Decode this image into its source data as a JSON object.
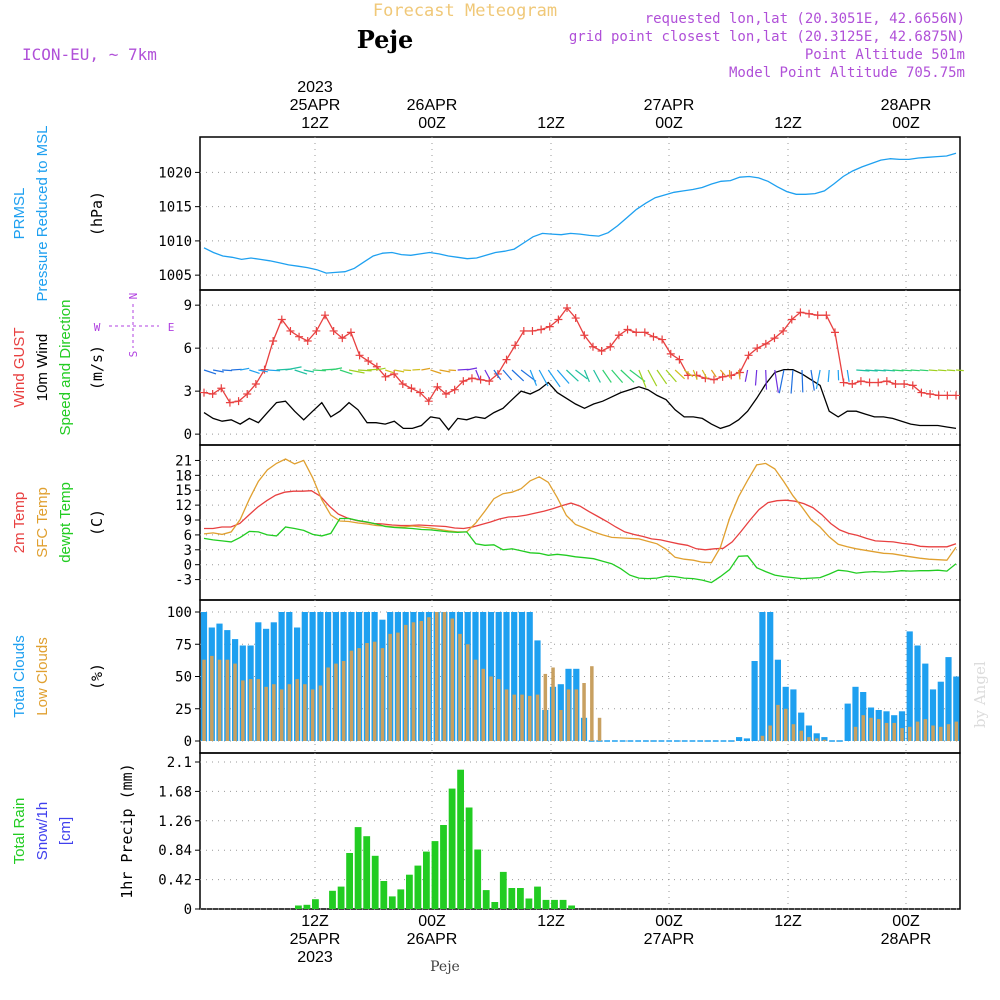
{
  "header": {
    "title": "Forecast Meteogram",
    "location": "Peje",
    "model": "ICON-EU, ~ 7km",
    "requested": "requested lon,lat (20.3051E, 42.6656N)",
    "grid_point": "grid point closest lon,lat (20.3125E, 42.6875N)",
    "point_altitude": "Point Altitude 501m",
    "model_altitude": "Model Point Altitude 705.75m",
    "footer_location": "Peje",
    "watermark": "by Angel"
  },
  "time_axis": {
    "top_labels": [
      {
        "lines": [
          "2023",
          "25APR",
          "12Z"
        ]
      },
      {
        "lines": [
          "26APR",
          "00Z"
        ]
      },
      {
        "lines": [
          "12Z"
        ]
      },
      {
        "lines": [
          "27APR",
          "00Z"
        ]
      },
      {
        "lines": [
          "12Z"
        ]
      },
      {
        "lines": [
          "28APR",
          "00Z"
        ]
      }
    ],
    "bottom_labels": [
      {
        "lines": [
          "12Z",
          "25APR",
          "2023"
        ]
      },
      {
        "lines": [
          "00Z",
          "26APR"
        ]
      },
      {
        "lines": [
          "12Z"
        ]
      },
      {
        "lines": [
          "00Z",
          "27APR"
        ]
      },
      {
        "lines": [
          "12Z"
        ]
      },
      {
        "lines": [
          "00Z",
          "28APR"
        ]
      }
    ]
  },
  "chart_data": [
    {
      "type": "line",
      "panel": "pressure",
      "labels": {
        "left": [
          {
            "text": "PRMSL",
            "color": "#1ea0f0"
          },
          {
            "text": "Pressure Reduced to MSL",
            "color": "#1ea0f0"
          }
        ],
        "unit": "(hPa)"
      },
      "ylim": [
        1004,
        1024
      ],
      "yticks": [
        1005,
        1010,
        1015,
        1020
      ],
      "series": [
        {
          "color": "#1ea0f0",
          "values": [
            1009,
            1008.3,
            1007.8,
            1007.6,
            1007.3,
            1007.5,
            1007.3,
            1007.1,
            1006.8,
            1006.5,
            1006.3,
            1006.1,
            1005.8,
            1005.3,
            1005.4,
            1005.5,
            1006,
            1006.9,
            1007.8,
            1008.2,
            1008.3,
            1008,
            1007.9,
            1008.1,
            1008.3,
            1008.1,
            1007.8,
            1007.6,
            1007.4,
            1007.5,
            1007.9,
            1008.3,
            1008.5,
            1008.8,
            1009.7,
            1010.6,
            1011.1,
            1011,
            1010.9,
            1011.1,
            1011,
            1010.8,
            1010.7,
            1011.2,
            1012.2,
            1013.4,
            1014.6,
            1015.5,
            1016.3,
            1016.7,
            1017.1,
            1017.3,
            1017.5,
            1017.8,
            1018.3,
            1018.7,
            1018.8,
            1019.3,
            1019.4,
            1019.2,
            1018.7,
            1017.9,
            1017.2,
            1016.8,
            1016.8,
            1016.9,
            1017.3,
            1018.3,
            1019.4,
            1020.2,
            1020.8,
            1021.3,
            1021.8,
            1022,
            1021.9,
            1021.9,
            1022.1,
            1022.2,
            1022.3,
            1022.4,
            1022.8
          ]
        }
      ]
    },
    {
      "type": "line",
      "panel": "wind",
      "labels": {
        "left": [
          {
            "text": "Wind GUST",
            "color": "#e84040"
          },
          {
            "text": "10m Wind",
            "color": "#000000"
          },
          {
            "text": "Speed and Direction",
            "color": "#22cc22"
          }
        ],
        "unit": "(m/s)"
      },
      "compass": {
        "w": "W",
        "e": "E",
        "n": "N",
        "s": "S",
        "color": "#b040e0"
      },
      "ylim": [
        -0.2,
        9.5
      ],
      "yticks": [
        0,
        3,
        6,
        9
      ],
      "series": [
        {
          "name": "Wind GUST",
          "color": "#e84040",
          "marker": "+",
          "values": [
            2.9,
            2.8,
            3.2,
            2.2,
            2.3,
            2.8,
            3.5,
            4.5,
            6.5,
            8,
            7.2,
            6.8,
            6.5,
            7.2,
            8.3,
            7.2,
            6.7,
            7.1,
            5.5,
            5.1,
            4.7,
            4,
            4.2,
            3.5,
            3.2,
            2.9,
            2.3,
            3.3,
            2.8,
            3.1,
            3.7,
            3.9,
            3.8,
            3.7,
            4.2,
            5.2,
            6.2,
            7.2,
            7.2,
            7.3,
            7.5,
            8,
            8.8,
            8.1,
            6.9,
            6.1,
            5.8,
            6.1,
            6.9,
            7.3,
            7.1,
            7.1,
            6.8,
            6.6,
            5.6,
            5.2,
            4.1,
            4.1,
            3.9,
            3.8,
            4,
            4.1,
            4.3,
            5.5,
            6,
            6.3,
            6.7,
            7.2,
            8,
            8.5,
            8.4,
            8.3,
            8.3,
            7.1,
            3.6,
            3.5,
            3.7,
            3.6,
            3.6,
            3.7,
            3.5,
            3.5,
            3.4,
            2.9,
            2.8,
            2.7,
            2.7,
            2.7
          ]
        },
        {
          "name": "10m Wind",
          "color": "#000000",
          "values": [
            1.5,
            1.1,
            0.9,
            1,
            0.7,
            1.1,
            0.8,
            1.5,
            2.2,
            2.3,
            1.6,
            1,
            1.6,
            2.2,
            1.2,
            1.6,
            2.2,
            1.7,
            0.8,
            0.8,
            0.7,
            0.9,
            0.4,
            0.4,
            0.6,
            1.2,
            1.1,
            0.3,
            1.1,
            1,
            1.2,
            1.1,
            1.5,
            1.8,
            2.4,
            3,
            2.8,
            3.1,
            3.6,
            2.9,
            2.5,
            2.1,
            1.8,
            2.1,
            2.3,
            2.6,
            2.9,
            3.1,
            3.3,
            3.1,
            2.7,
            2.4,
            1.7,
            1.2,
            1.2,
            1.1,
            0.7,
            0.4,
            0.6,
            1,
            1.6,
            2.5,
            3.5,
            4.3,
            4.5,
            4.5,
            4.2,
            3.8,
            3.4,
            1.6,
            1.2,
            1.6,
            1.6,
            1.4,
            1.2,
            1.2,
            1.1,
            0.9,
            0.7,
            0.6,
            0.6,
            0.6,
            0.5,
            0.4
          ]
        }
      ]
    },
    {
      "type": "line",
      "panel": "temperature",
      "labels": {
        "left": [
          {
            "text": "2m Temp",
            "color": "#e84040"
          },
          {
            "text": "SFC Temp",
            "color": "#e0a030"
          },
          {
            "text": "dewpt Temp",
            "color": "#22cc22"
          }
        ],
        "unit": "(C)"
      },
      "ylim": [
        -5.5,
        22.5
      ],
      "yticks": [
        -3,
        0,
        3,
        6,
        9,
        12,
        15,
        18,
        21
      ],
      "series": [
        {
          "name": "2m Temp",
          "color": "#e84040",
          "values": [
            7.3,
            7.3,
            7.6,
            7.6,
            8.3,
            10,
            11.6,
            12.9,
            14,
            14.6,
            14.8,
            14.8,
            14.9,
            13.8,
            11.8,
            10.2,
            9.4,
            8.9,
            8.6,
            8.3,
            8.2,
            8,
            7.9,
            7.9,
            8,
            7.9,
            7.8,
            7.7,
            7.4,
            7.3,
            7.6,
            8.1,
            8.6,
            9.2,
            9.6,
            9.7,
            10,
            10.4,
            10.8,
            11.3,
            11.9,
            12.4,
            11.8,
            10.7,
            9.7,
            8.7,
            7.6,
            6.6,
            6.1,
            5.7,
            5.2,
            5,
            4.6,
            4.2,
            3.9,
            3.2,
            3,
            3.2,
            3.3,
            4.6,
            6.7,
            9,
            11.1,
            12.5,
            12.9,
            13,
            12.8,
            12.3,
            11.5,
            10.1,
            8.3,
            7,
            6.3,
            5.9,
            5.3,
            4.8,
            4.7,
            4.6,
            4.3,
            4.1,
            3.7,
            3.6,
            3.6,
            3.6,
            4.2
          ]
        },
        {
          "name": "SFC Temp",
          "color": "#e0a030",
          "values": [
            6.2,
            6.4,
            6.1,
            6.6,
            9.1,
            13.2,
            16.8,
            19.1,
            20.4,
            21.3,
            20.3,
            21,
            17.5,
            13.1,
            10,
            8.8,
            8.7,
            8.4,
            8.2,
            7.9,
            7.8,
            7.6,
            7.6,
            7.8,
            7.6,
            7.4,
            7.1,
            6.8,
            6.6,
            6.6,
            8.4,
            10.8,
            13.3,
            14.3,
            14.6,
            15.3,
            16.9,
            17.7,
            16.6,
            13.5,
            9.9,
            8.1,
            7.4,
            6.6,
            6,
            5.5,
            5.4,
            5.3,
            5.2,
            4.7,
            4.2,
            3.1,
            1.5,
            1.1,
            0.9,
            0.5,
            0.4,
            3.5,
            9.3,
            13.7,
            17,
            20.1,
            20.4,
            19.3,
            16.7,
            13.9,
            11.6,
            9.1,
            7.6,
            5.6,
            4.1,
            3.6,
            3.2,
            2.9,
            2.6,
            2.3,
            2.2,
            1.9,
            1.6,
            1.3,
            1.1,
            1,
            0.9,
            3.5
          ]
        },
        {
          "name": "dewpt Temp",
          "color": "#22cc22",
          "values": [
            5.3,
            5,
            4.8,
            4.6,
            5.5,
            6.7,
            6.6,
            6,
            5.8,
            7.6,
            7.3,
            6.9,
            6.1,
            5.8,
            6.3,
            9.3,
            9.3,
            8.9,
            8.6,
            8.2,
            7.7,
            7.5,
            7.4,
            7.3,
            7.1,
            7,
            6.8,
            6.6,
            6.5,
            6.6,
            4.2,
            3.9,
            4,
            3,
            3.2,
            2.8,
            2.4,
            2.3,
            1.9,
            2.1,
            1.9,
            1.6,
            1.4,
            1.2,
            0.7,
            0.2,
            -0.8,
            -2.1,
            -2.7,
            -2.8,
            -2.7,
            -2.3,
            -2.4,
            -2.7,
            -2.8,
            -3.1,
            -3.6,
            -2.4,
            -1,
            1.7,
            1.8,
            -0.6,
            -1.4,
            -2.1,
            -2.4,
            -2.6,
            -2.8,
            -2.7,
            -2.6,
            -1.9,
            -1.1,
            -1.3,
            -1.7,
            -1.5,
            -1.4,
            -1.5,
            -1.4,
            -1.2,
            -1.3,
            -1.2,
            -1.2,
            -1.1,
            -1.3,
            0.2
          ]
        }
      ]
    },
    {
      "type": "bar",
      "panel": "clouds",
      "labels": {
        "left": [
          {
            "text": "Total Clouds",
            "color": "#1ea0f0"
          },
          {
            "text": "Low Clouds",
            "color": "#e0a030"
          }
        ],
        "unit": "(%)"
      },
      "ylim": [
        0,
        100
      ],
      "yticks": [
        0,
        25,
        50,
        75,
        100
      ],
      "series": [
        {
          "name": "Total Clouds",
          "color": "#1ea0f0",
          "values": [
            100,
            88,
            91,
            86,
            79,
            74,
            74,
            92,
            87,
            92,
            100,
            100,
            88,
            100,
            100,
            100,
            100,
            100,
            100,
            100,
            100,
            100,
            100,
            94,
            100,
            100,
            100,
            100,
            100,
            100,
            100,
            100,
            100,
            100,
            100,
            100,
            100,
            100,
            100,
            100,
            100,
            100,
            100,
            78,
            24,
            42,
            44,
            56,
            56,
            18,
            0,
            0,
            0,
            0,
            0,
            0,
            0,
            0,
            0,
            0,
            0,
            0,
            0,
            0,
            0,
            0,
            0,
            0,
            0,
            3,
            2,
            62,
            100,
            100,
            63,
            42,
            40,
            22,
            12,
            6,
            3,
            0,
            0,
            29,
            42,
            38,
            26,
            24,
            23,
            20,
            23,
            85,
            74,
            60,
            40,
            46,
            65,
            50
          ]
        },
        {
          "name": "Low Clouds",
          "color": "#c8a060",
          "values": [
            63,
            66,
            63,
            63,
            60,
            47,
            48,
            48,
            42,
            44,
            40,
            44,
            48,
            44,
            40,
            43,
            57,
            60,
            62,
            70,
            72,
            76,
            77,
            72,
            83,
            84,
            90,
            92,
            93,
            96,
            100,
            100,
            95,
            83,
            75,
            63,
            56,
            50,
            48,
            40,
            36,
            36,
            35,
            36,
            52,
            57,
            24,
            40,
            40,
            45,
            58,
            18,
            0,
            0,
            0,
            0,
            0,
            0,
            0,
            0,
            0,
            0,
            0,
            0,
            0,
            0,
            0,
            0,
            0,
            0,
            0,
            0,
            4,
            12,
            28,
            25,
            13,
            8,
            3,
            2,
            1,
            0,
            0,
            0,
            11,
            20,
            18,
            17,
            14,
            14,
            10,
            11,
            15,
            17,
            12,
            11,
            13,
            15
          ]
        }
      ]
    },
    {
      "type": "bar",
      "panel": "precip",
      "labels": {
        "left": [
          {
            "text": "Total  Rain",
            "color": "#22cc22"
          },
          {
            "text": "Snow/1h",
            "color": "#4040ee"
          },
          {
            "text": "[cm]",
            "color": "#4040ee"
          }
        ],
        "unit": "1hr Precip (mm)"
      },
      "ylim": [
        0,
        2.1
      ],
      "yticks": [
        0,
        0.42,
        0.84,
        1.26,
        1.68,
        2.1
      ],
      "yticklabels": [
        "0",
        "0.42",
        "0.84",
        "1.26",
        "1.68",
        "2.1"
      ],
      "series": [
        {
          "name": "Total Rain",
          "color": "#22cc22",
          "values": [
            0,
            0,
            0,
            0,
            0,
            0,
            0,
            0,
            0,
            0,
            0,
            0.05,
            0.06,
            0.14,
            0,
            0.26,
            0.32,
            0.8,
            1.17,
            1.04,
            0.76,
            0.4,
            0.18,
            0.28,
            0.49,
            0.62,
            0.82,
            0.97,
            1.2,
            1.72,
            1.99,
            1.45,
            0.85,
            0.27,
            0.1,
            0.53,
            0.3,
            0.3,
            0.15,
            0.32,
            0.13,
            0.13,
            0.13,
            0.05,
            0,
            0,
            0,
            0,
            0,
            0,
            0,
            0,
            0,
            0,
            0,
            0,
            0,
            0,
            0,
            0,
            0,
            0,
            0,
            0,
            0,
            0,
            0,
            0,
            0,
            0,
            0,
            0,
            0,
            0,
            0,
            0,
            0,
            0,
            0,
            0,
            0,
            0,
            0,
            0,
            0,
            0,
            0,
            0,
            0
          ]
        }
      ]
    }
  ]
}
